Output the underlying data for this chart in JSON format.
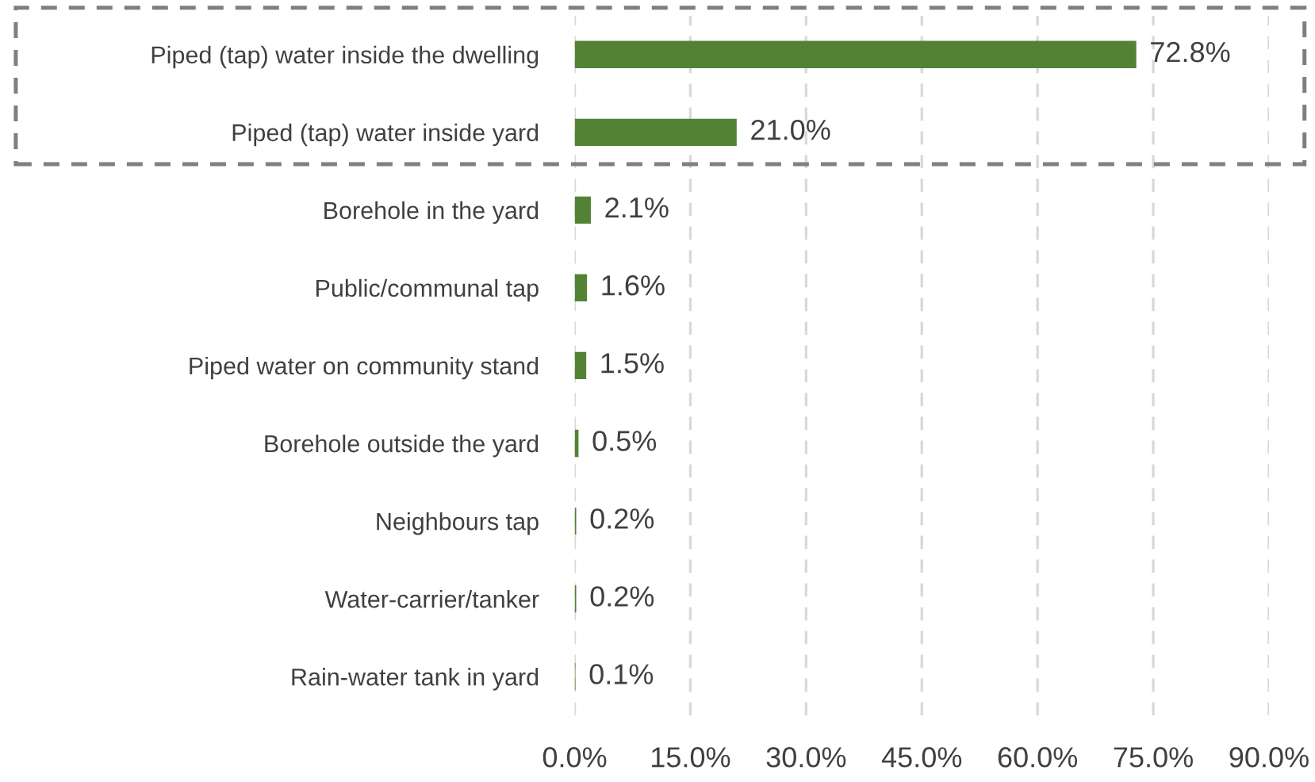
{
  "chart_data": {
    "type": "bar",
    "orientation": "horizontal",
    "categories": [
      "Piped (tap) water inside the dwelling",
      "Piped (tap) water inside yard",
      "Borehole in the yard",
      "Public/communal tap",
      "Piped water on community stand",
      "Borehole outside the yard",
      "Neighbours tap",
      "Water-carrier/tanker",
      "Rain-water tank in yard"
    ],
    "values": [
      72.8,
      21.0,
      2.1,
      1.6,
      1.5,
      0.5,
      0.2,
      0.2,
      0.1
    ],
    "value_labels": [
      "72.8%",
      "21.0%",
      "2.1%",
      "1.6%",
      "1.5%",
      "0.5%",
      "0.2%",
      "0.2%",
      "0.1%"
    ],
    "color": "#548235",
    "xlim": [
      0,
      90
    ],
    "xticks": [
      {
        "value": 0,
        "label": "0.0%"
      },
      {
        "value": 15,
        "label": "15.0%"
      },
      {
        "value": 30,
        "label": "30.0%"
      },
      {
        "value": 45,
        "label": "45.0%"
      },
      {
        "value": 60,
        "label": "60.0%"
      },
      {
        "value": 75,
        "label": "75.0%"
      },
      {
        "value": 90,
        "label": "90.0%"
      }
    ],
    "grid": "x",
    "legend": false
  }
}
